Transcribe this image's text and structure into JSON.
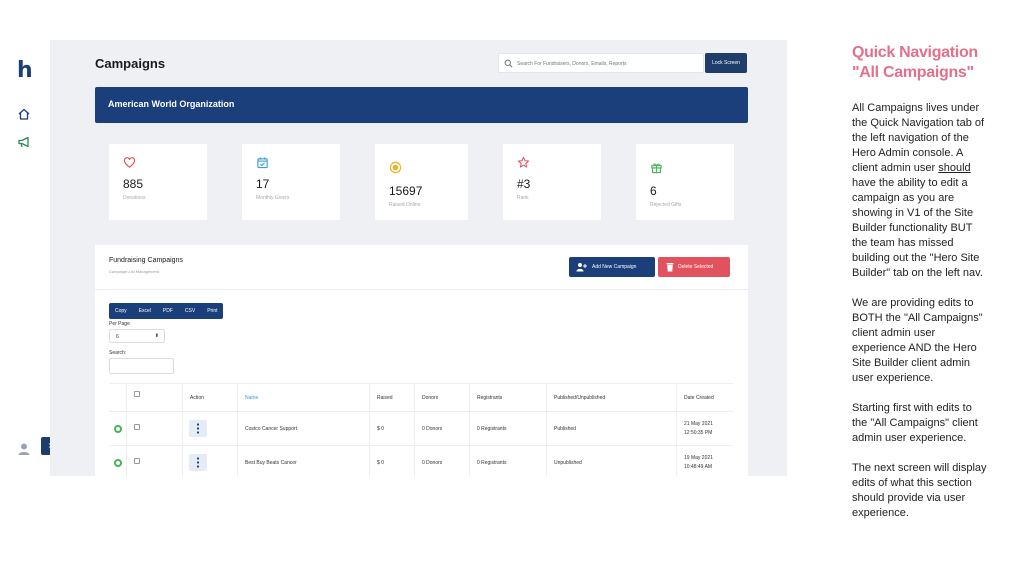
{
  "brand": {
    "logo_letter": "h"
  },
  "rail": {
    "icons": [
      "home-icon",
      "megaphone-icon",
      "user-icon",
      "chevron-right-icon"
    ],
    "expand_glyph": "›"
  },
  "header": {
    "title": "Campaigns",
    "search_placeholder": "Search For Fundraisers, Donors, Emails, Reports",
    "lock_label": "Lock Screen"
  },
  "org": {
    "name": "American World Organization"
  },
  "stats": [
    {
      "value": "885",
      "label": "Donations",
      "icon": "heart-icon",
      "color": "#e2515e"
    },
    {
      "value": "17",
      "label": "Monthly Givers",
      "icon": "calendar-check-icon",
      "color": "#3aa0d0"
    },
    {
      "value": "15697",
      "label": "Raised Online",
      "icon": "coin-icon",
      "color": "#e8b526"
    },
    {
      "value": "#3",
      "label": "Rank",
      "icon": "star-icon",
      "color": "#e2515e"
    },
    {
      "value": "6",
      "label": "Rejected Gifts",
      "icon": "gift-icon",
      "color": "#48b454"
    }
  ],
  "campaigns_panel": {
    "title": "Fundraising Campaigns",
    "subtitle": "Campaign List Management",
    "add_label": "Add New Campaign",
    "delete_label": "Delete Selected",
    "export_buttons": [
      "Copy",
      "Excel",
      "PDF",
      "CSV",
      "Print"
    ],
    "per_page_label": "Per Page",
    "per_page_value": "6",
    "search_label": "Search:",
    "columns": [
      "",
      "",
      "Action",
      "Name",
      "Raised",
      "Donors",
      "Registrants",
      "Published/Unpublished",
      "Date Created"
    ],
    "rows": [
      {
        "name": "Costco Cancer Support",
        "raised": "$ 0",
        "donors": "0 Donors",
        "registrants": "0 Registrants",
        "status": "Published",
        "date": "21 May 2021",
        "time": "12:50:35 PM"
      },
      {
        "name": "Best Buy Beats Cancer",
        "raised": "$ 0",
        "donors": "0 Donors",
        "registrants": "0 Registrants",
        "status": "Unpublished",
        "date": "19 May 2021",
        "time": "10:48:49 AM"
      }
    ]
  },
  "notes": {
    "heading": "Quick Navigation \"All Campaigns\"",
    "p1_before": "All Campaigns lives under the Quick Navigation tab of the left navigation of the Hero Admin console.  A client admin user ",
    "p1_underline": "should",
    "p1_after": " have the ability to edit a campaign as you are showing in V1 of the Site Builder functionality BUT the team has missed building out the \"Hero Site Builder\" tab on the left nav.",
    "p2": "We are providing edits to BOTH the \"All Campaigns\" client admin user experience AND the Hero Site Builder client admin user experience.",
    "p3": "Starting first with edits to the \"All Campaigns\" client admin user experience.",
    "p4": "The next screen will display edits of what this section should provide via user experience."
  }
}
